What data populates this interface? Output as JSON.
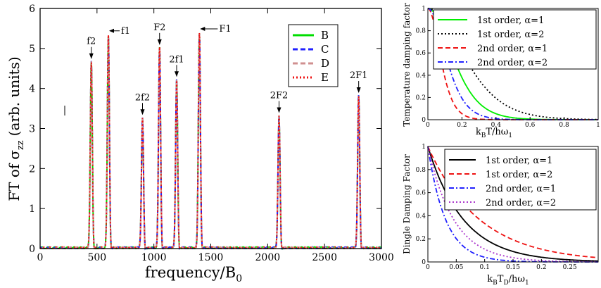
{
  "chart_data": [
    {
      "type": "line",
      "title": "",
      "xlabel": "frequency/B",
      "xlabel_sub": "0",
      "ylabel_prefix": "FT of",
      "ylabel_sigma": "σ",
      "ylabel_sub": "zz",
      "ylabel_suffix": "(arb. units)",
      "xlim": [
        0,
        3000
      ],
      "ylim": [
        0,
        6
      ],
      "xticks": [
        0,
        500,
        1000,
        1500,
        2000,
        2500,
        3000
      ],
      "yticks": [
        0,
        1,
        2,
        3,
        4,
        5,
        6
      ],
      "peaks": [
        {
          "label": "f2",
          "x": 450,
          "y": 4.65
        },
        {
          "label": "f1",
          "x": 600,
          "y": 5.3
        },
        {
          "label": "2f2",
          "x": 900,
          "y": 3.25
        },
        {
          "label": "F2",
          "x": 1050,
          "y": 5.0
        },
        {
          "label": "2f1",
          "x": 1200,
          "y": 4.2
        },
        {
          "label": "F1",
          "x": 1400,
          "y": 5.35
        },
        {
          "label": "2F2",
          "x": 2100,
          "y": 3.3
        },
        {
          "label": "2F1",
          "x": 2800,
          "y": 3.8
        }
      ],
      "series": [
        {
          "name": "B",
          "color": "#00dd00",
          "dash": "solid"
        },
        {
          "name": "C",
          "color": "#2020ff",
          "dash": "dash"
        },
        {
          "name": "D",
          "color": "#d09090",
          "dash": "dash"
        },
        {
          "name": "E",
          "color": "#ee1111",
          "dash": "dot"
        }
      ],
      "legend_position": "top-right"
    },
    {
      "type": "line",
      "title": "",
      "xlabel": "k",
      "xlabel_parts": [
        "k",
        "B",
        "T/hω",
        "1"
      ],
      "ylabel": "Temperature damping factor",
      "xlim": [
        0,
        1
      ],
      "ylim": [
        0,
        1
      ],
      "xticks": [
        0,
        0.2,
        0.4,
        0.6,
        0.8,
        1
      ],
      "yticks": [
        0,
        0.2,
        0.4,
        0.6,
        0.8,
        1
      ],
      "series": [
        {
          "name": "1st order, α=1",
          "color": "#00ee00",
          "dash": "solid",
          "scale": 4.0
        },
        {
          "name": "1st order, α=2",
          "color": "#000000",
          "dash": "dot",
          "scale": 2.75
        },
        {
          "name": "2nd order, α=1",
          "color": "#ee1111",
          "dash": "dash",
          "scale": 8.0
        },
        {
          "name": "2nd order, α=2",
          "color": "#2020ff",
          "dash": "dashdot",
          "scale": 5.5
        }
      ],
      "legend_position": "top-right"
    },
    {
      "type": "line",
      "title": "",
      "xlabel_parts": [
        "k",
        "B",
        "T",
        "D",
        "/hω",
        "1"
      ],
      "ylabel": "Dingle Damping Factor",
      "xlim": [
        0,
        0.3
      ],
      "ylim": [
        0,
        1
      ],
      "xticks": [
        0,
        0.05,
        0.1,
        0.15,
        0.2,
        0.25
      ],
      "yticks": [
        0,
        0.2,
        0.4,
        0.6,
        0.8,
        1
      ],
      "series": [
        {
          "name": "1st order, α=1",
          "color": "#000000",
          "dash": "solid",
          "rate": 16
        },
        {
          "name": "1st order, α=2",
          "color": "#ee1111",
          "dash": "dash",
          "rate": 11
        },
        {
          "name": "2nd order, α=1",
          "color": "#2020ff",
          "dash": "dashdot",
          "rate": 32
        },
        {
          "name": "2nd order, α=2",
          "color": "#aa33cc",
          "dash": "dot",
          "rate": 22
        }
      ],
      "legend_position": "top-right"
    }
  ]
}
